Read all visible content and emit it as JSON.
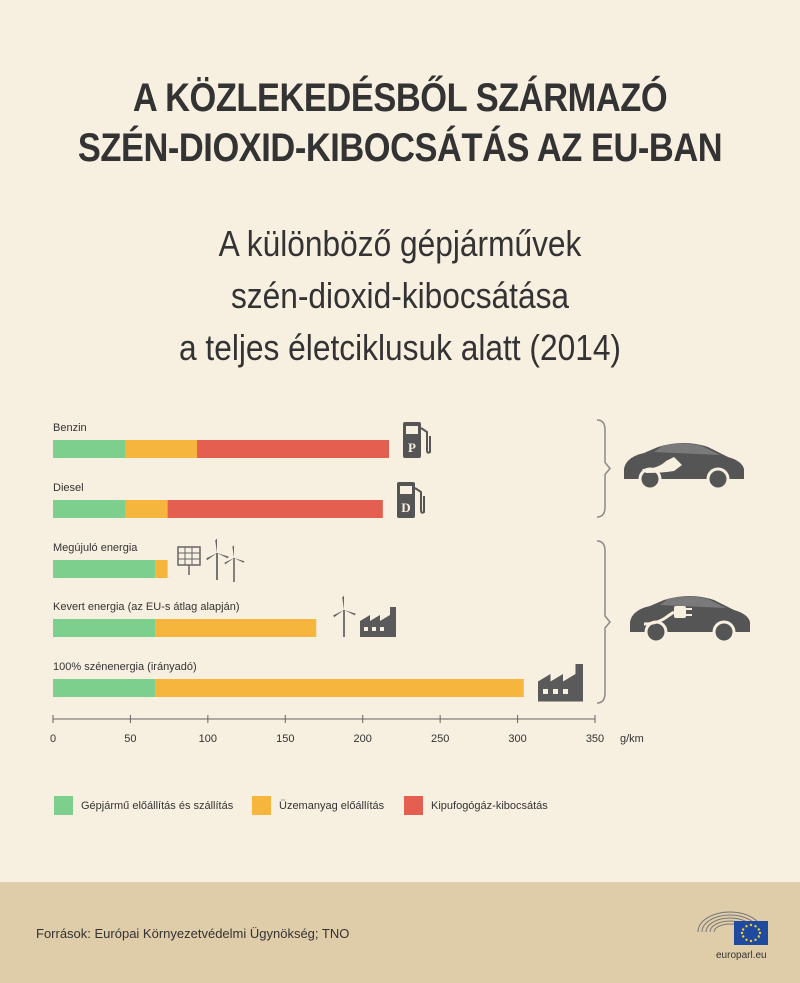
{
  "title": {
    "line1": "A KÖZLEKEDÉSBŐL SZÁRMAZÓ",
    "line2": "SZÉN-DIOXID-KIBOCSÁTÁS AZ EU-BAN"
  },
  "subtitle": {
    "line1": "A különböző gépjárművek",
    "line2": "szén-dioxid-kibocsátása",
    "line3": "a teljes életciklusuk alatt (2014)"
  },
  "chart_data": {
    "type": "bar",
    "orientation": "horizontal",
    "stacked": true,
    "categories": [
      "Benzin",
      "Diesel",
      "Megújuló energia",
      "Kevert energia (az EU-s átlag alapján)",
      "100% szénenergia (irányadó)"
    ],
    "series": [
      {
        "name": "Gépjármű előállítás és szállítás",
        "color": "#7ccf8c",
        "values": [
          47,
          47,
          66,
          66,
          66
        ]
      },
      {
        "name": "Üzemanyag előállítás",
        "color": "#f6b53d",
        "values": [
          46,
          27,
          8,
          104,
          238
        ]
      },
      {
        "name": "Kipufogógáz-kibocsátás",
        "color": "#e45f4f",
        "values": [
          124,
          139,
          0,
          0,
          0
        ]
      }
    ],
    "xlim": [
      0,
      350
    ],
    "ticks": [
      0,
      50,
      100,
      150,
      200,
      250,
      300,
      350
    ],
    "xunit": "g/km",
    "groups": [
      {
        "icon": "fuel-car-icon",
        "members": [
          "Benzin",
          "Diesel"
        ]
      },
      {
        "icon": "electric-car-icon",
        "members": [
          "Megújuló energia",
          "Kevert energia (az EU-s átlag alapján)",
          "100% szénenergia (irányadó)"
        ]
      }
    ],
    "row_icons": [
      "petrol-pump-icon",
      "diesel-pump-icon",
      "renewables-icon",
      "mixed-energy-icon",
      "coal-factory-icon"
    ],
    "pump_letters": [
      "P",
      "D"
    ]
  },
  "source": "Források: Európai Környezetvédelmi Ügynökség; TNO",
  "brand": "europarl.eu"
}
